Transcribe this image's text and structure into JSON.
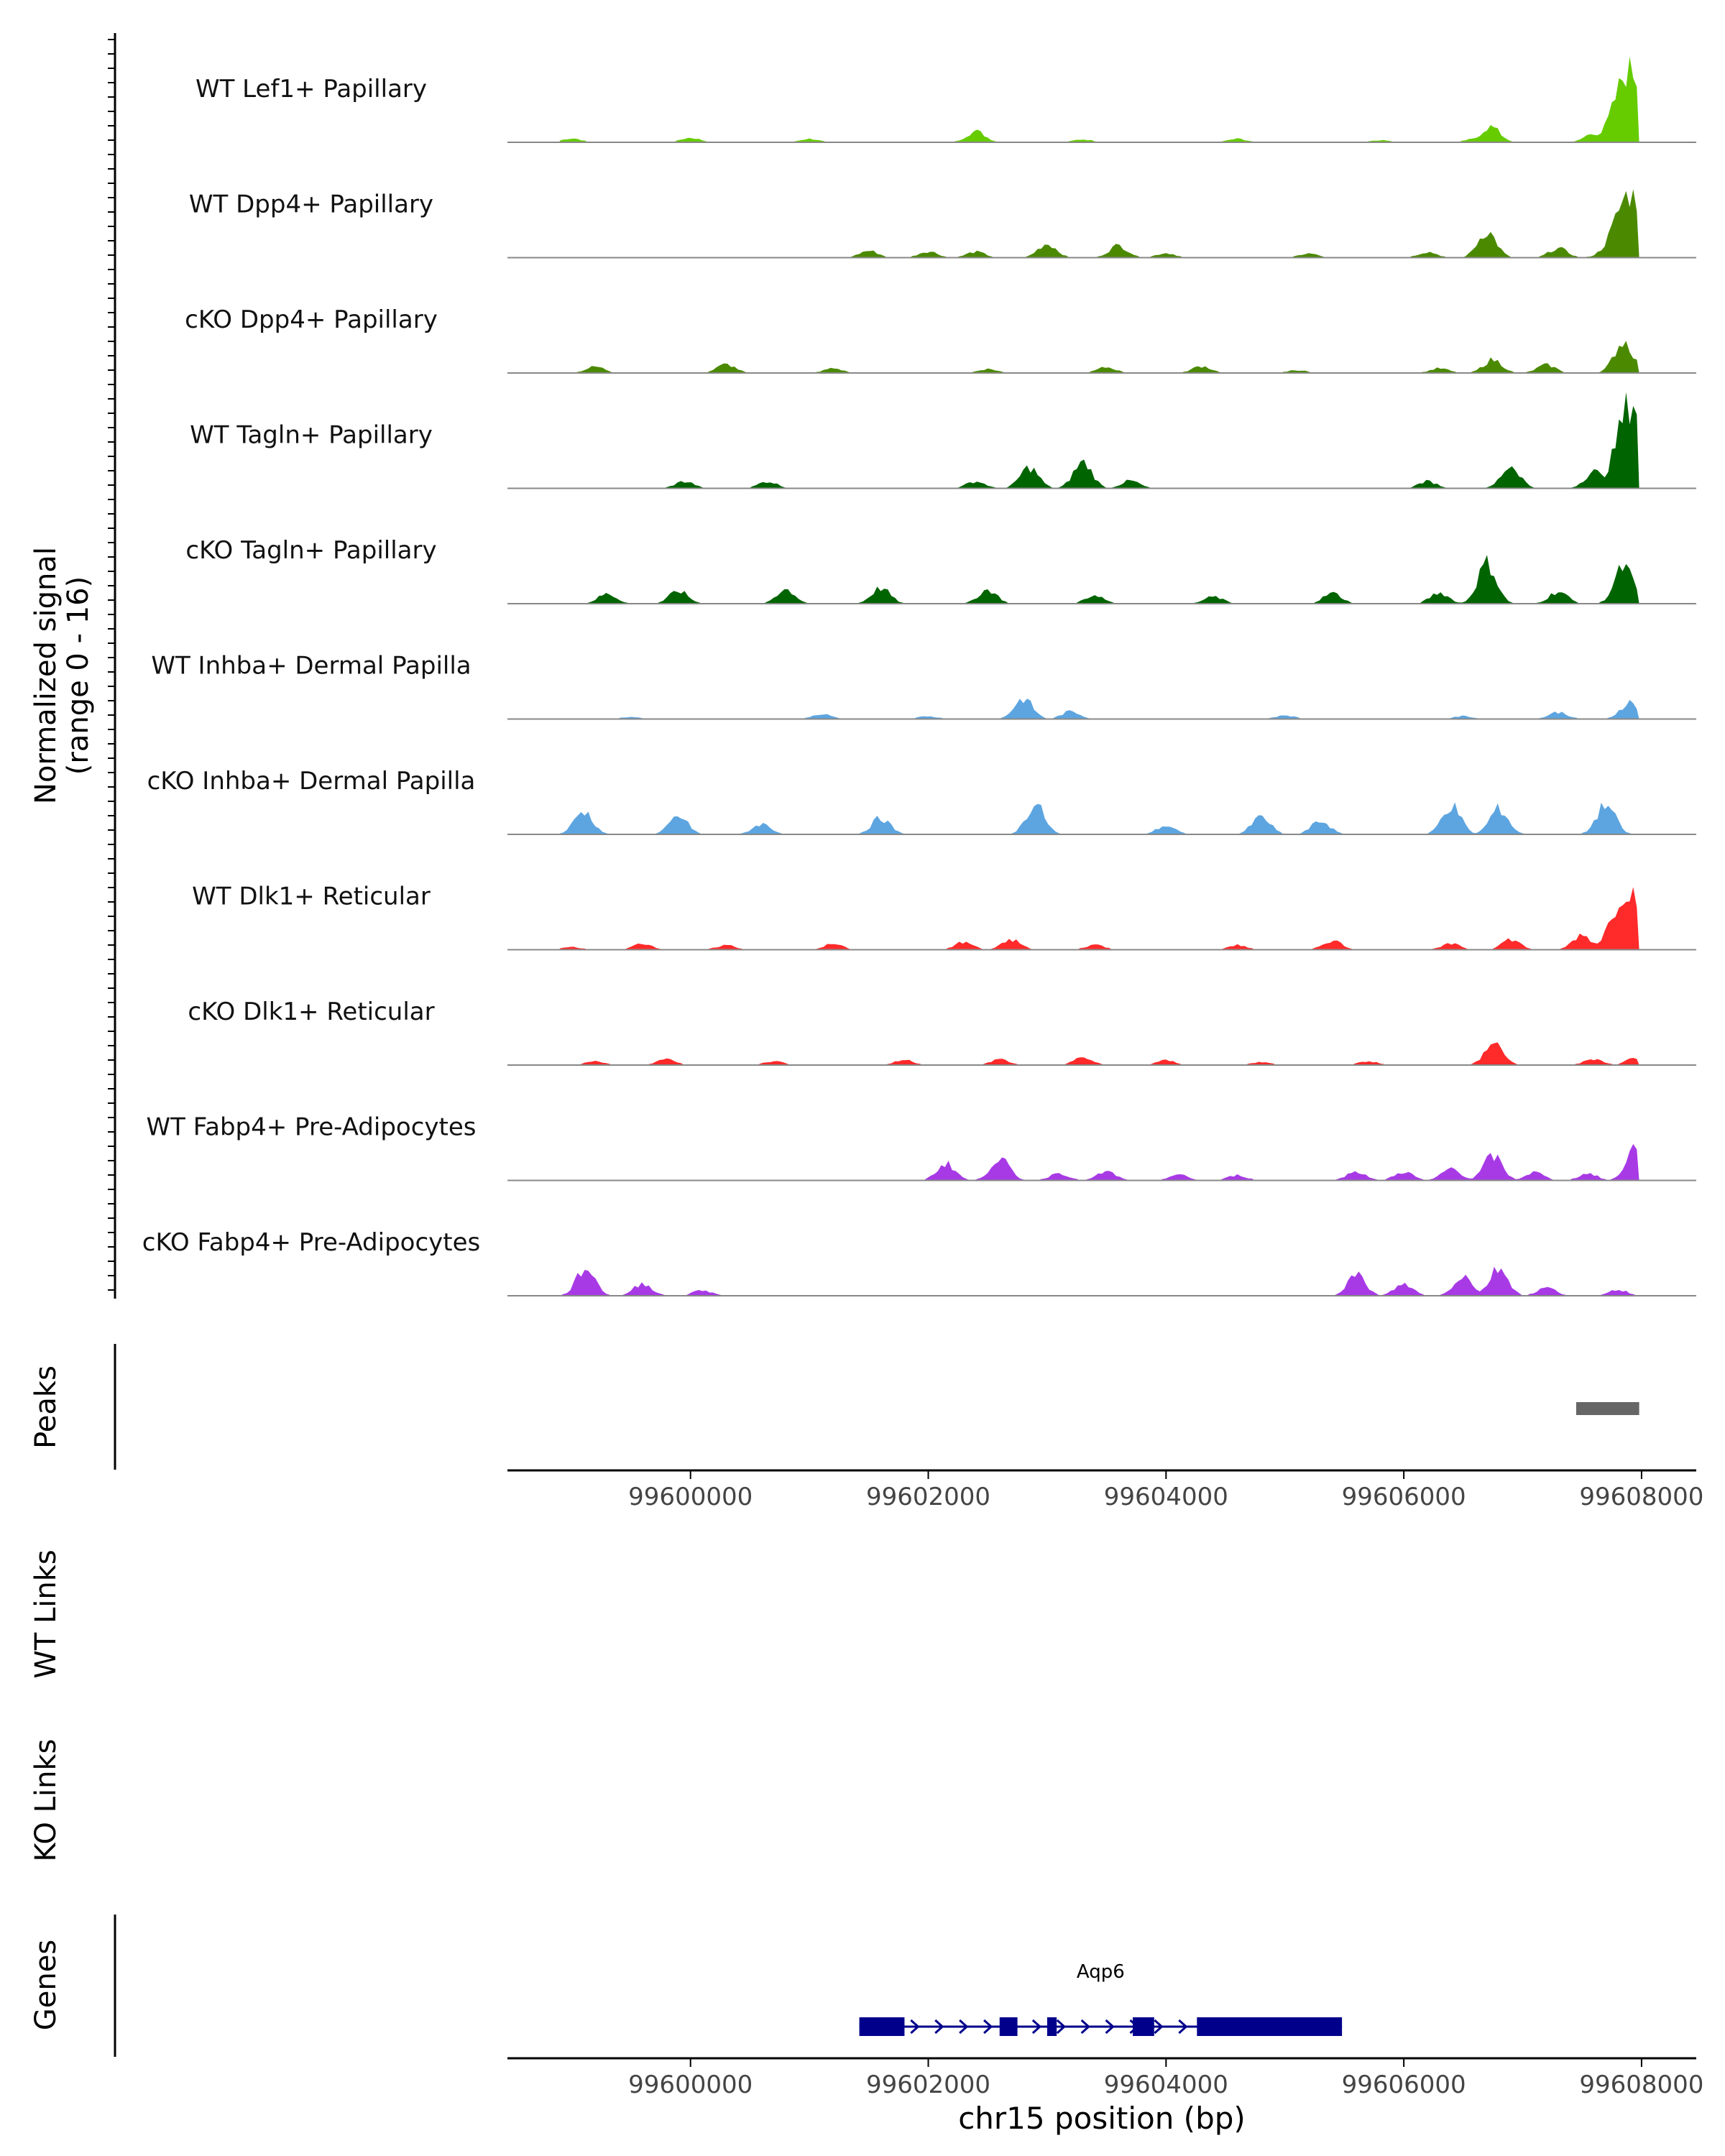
{
  "chart_data": {
    "type": "area",
    "title": "",
    "region": "chr15",
    "xlim": [
      99598460,
      99608460
    ],
    "ylim": [
      0,
      16
    ],
    "y_axis_label_line1": "Normalized signal",
    "y_axis_label_line2": "(range 0 - 16)",
    "xlabel": "chr15 position (bp)",
    "x_ticks": [
      99600000,
      99602000,
      99604000,
      99606000,
      99608000
    ],
    "x_tick_labels": [
      "99600000",
      "99602000",
      "99604000",
      "99606000",
      "99608000"
    ],
    "tracks": [
      {
        "name": "WT Lef1+ Papillary",
        "color": "#66CC00",
        "peaks": [
          [
            99599000,
            0.7
          ],
          [
            99600000,
            0.8
          ],
          [
            99601000,
            0.6
          ],
          [
            99602400,
            1.9
          ],
          [
            99603300,
            0.5
          ],
          [
            99604600,
            0.6
          ],
          [
            99605800,
            0.4
          ],
          [
            99606600,
            0.6
          ],
          [
            99606730,
            2.7
          ],
          [
            99607600,
            1.6
          ],
          [
            99607900,
            12.5
          ]
        ]
      },
      {
        "name": "WT Dpp4+ Papillary",
        "color": "#4B8A00",
        "peaks": [
          [
            99601500,
            1.2
          ],
          [
            99602000,
            1.1
          ],
          [
            99602400,
            1.0
          ],
          [
            99603000,
            2.4
          ],
          [
            99603600,
            2.1
          ],
          [
            99604000,
            0.8
          ],
          [
            99605200,
            0.7
          ],
          [
            99606200,
            1.0
          ],
          [
            99606700,
            4.5
          ],
          [
            99607300,
            1.6
          ],
          [
            99607900,
            11.0
          ]
        ]
      },
      {
        "name": "cKO Dpp4+ Papillary",
        "color": "#4B8A00",
        "peaks": [
          [
            99599200,
            1.1
          ],
          [
            99600300,
            1.5
          ],
          [
            99601200,
            0.8
          ],
          [
            99602500,
            0.7
          ],
          [
            99603500,
            1.0
          ],
          [
            99604300,
            1.2
          ],
          [
            99605100,
            0.5
          ],
          [
            99606300,
            0.8
          ],
          [
            99606750,
            2.3
          ],
          [
            99607200,
            1.4
          ],
          [
            99607850,
            5.5
          ]
        ]
      },
      {
        "name": "WT Tagln+ Papillary",
        "color": "#006400",
        "peaks": [
          [
            99599950,
            1.2
          ],
          [
            99600650,
            1.2
          ],
          [
            99602400,
            1.2
          ],
          [
            99602850,
            3.6
          ],
          [
            99603300,
            4.5
          ],
          [
            99603700,
            1.3
          ],
          [
            99606200,
            1.2
          ],
          [
            99606900,
            3.9
          ],
          [
            99607600,
            2.9
          ],
          [
            99607920,
            15.0
          ]
        ]
      },
      {
        "name": "cKO Tagln+ Papillary",
        "color": "#006400",
        "peaks": [
          [
            99599300,
            1.7
          ],
          [
            99599900,
            2.2
          ],
          [
            99600800,
            2.5
          ],
          [
            99601600,
            2.7
          ],
          [
            99602500,
            2.4
          ],
          [
            99603400,
            1.5
          ],
          [
            99604400,
            1.2
          ],
          [
            99605400,
            1.8
          ],
          [
            99606300,
            1.9
          ],
          [
            99606700,
            7.0
          ],
          [
            99607300,
            2.1
          ],
          [
            99607850,
            6.3
          ]
        ]
      },
      {
        "name": "WT Inhba+ Dermal Papilla",
        "color": "#5DA5E0",
        "peaks": [
          [
            99599500,
            0.4
          ],
          [
            99601100,
            0.9
          ],
          [
            99602000,
            0.5
          ],
          [
            99602800,
            3.5
          ],
          [
            99603200,
            1.3
          ],
          [
            99605000,
            0.7
          ],
          [
            99606500,
            0.5
          ],
          [
            99607300,
            1.2
          ],
          [
            99607900,
            2.9
          ]
        ]
      },
      {
        "name": "cKO Inhba+ Dermal Papilla",
        "color": "#5DA5E0",
        "peaks": [
          [
            99599100,
            4.0
          ],
          [
            99599900,
            3.1
          ],
          [
            99600600,
            1.8
          ],
          [
            99601600,
            2.8
          ],
          [
            99602900,
            5.1
          ],
          [
            99604000,
            1.5
          ],
          [
            99604800,
            3.0
          ],
          [
            99605300,
            2.3
          ],
          [
            99606400,
            5.0
          ],
          [
            99606800,
            4.4
          ],
          [
            99607700,
            5.1
          ]
        ]
      },
      {
        "name": "WT Dlk1+ Reticular",
        "color": "#FF2A2A",
        "peaks": [
          [
            99599000,
            0.5
          ],
          [
            99599600,
            1.1
          ],
          [
            99600300,
            0.8
          ],
          [
            99601200,
            1.0
          ],
          [
            99602300,
            1.3
          ],
          [
            99602700,
            1.7
          ],
          [
            99603400,
            0.9
          ],
          [
            99604600,
            0.8
          ],
          [
            99605400,
            1.6
          ],
          [
            99606400,
            1.0
          ],
          [
            99606900,
            1.8
          ],
          [
            99607500,
            2.6
          ],
          [
            99607880,
            10.5
          ]
        ]
      },
      {
        "name": "cKO Dlk1+ Reticular",
        "color": "#FF2A2A",
        "peaks": [
          [
            99599200,
            0.7
          ],
          [
            99599800,
            1.0
          ],
          [
            99600700,
            0.7
          ],
          [
            99601800,
            0.9
          ],
          [
            99602600,
            1.0
          ],
          [
            99603300,
            1.3
          ],
          [
            99604000,
            0.8
          ],
          [
            99604800,
            0.5
          ],
          [
            99605700,
            0.7
          ],
          [
            99606760,
            3.8
          ],
          [
            99607600,
            1.1
          ],
          [
            99607950,
            1.3
          ]
        ]
      },
      {
        "name": "WT Fabp4+ Pre-Adipocytes",
        "color": "#A83AE6",
        "peaks": [
          [
            99602150,
            2.9
          ],
          [
            99602600,
            3.9
          ],
          [
            99603100,
            1.3
          ],
          [
            99603500,
            1.5
          ],
          [
            99604100,
            1.0
          ],
          [
            99604600,
            0.9
          ],
          [
            99605600,
            1.6
          ],
          [
            99606000,
            1.5
          ],
          [
            99606400,
            2.1
          ],
          [
            99606750,
            4.2
          ],
          [
            99607100,
            1.4
          ],
          [
            99607550,
            1.2
          ],
          [
            99607950,
            5.8
          ]
        ]
      },
      {
        "name": "cKO Fabp4+ Pre-Adipocytes",
        "color": "#A83AE6",
        "peaks": [
          [
            99599120,
            4.8
          ],
          [
            99599600,
            2.1
          ],
          [
            99600100,
            1.0
          ],
          [
            99605600,
            3.6
          ],
          [
            99606000,
            2.0
          ],
          [
            99606500,
            3.5
          ],
          [
            99606800,
            4.8
          ],
          [
            99607200,
            1.4
          ],
          [
            99607800,
            1.1
          ]
        ]
      }
    ],
    "peaks_track": {
      "label": "Peaks",
      "color": "#666666",
      "regions": [
        [
          99607450,
          99607980
        ]
      ]
    },
    "links_tracks": [
      {
        "label": "WT Links"
      },
      {
        "label": "KO Links"
      }
    ],
    "genes_track": {
      "label": "Genes",
      "color": "#00008B",
      "genes": [
        {
          "name": "Aqp6",
          "strand": "+",
          "start": 99601420,
          "end": 99605480,
          "exons": [
            [
              99601420,
              99601800
            ],
            [
              99602600,
              99602750
            ],
            [
              99603000,
              99603080
            ],
            [
              99603720,
              99603900
            ],
            [
              99604260,
              99605480
            ]
          ]
        }
      ]
    }
  }
}
